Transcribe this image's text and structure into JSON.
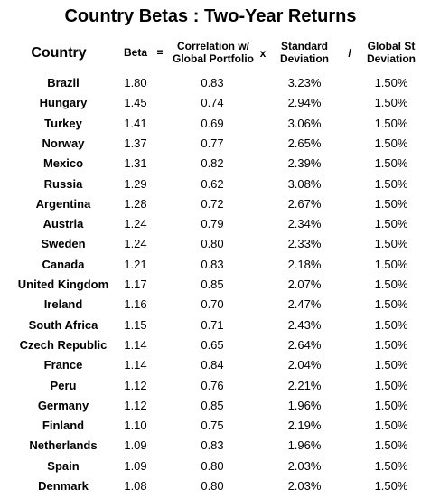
{
  "title": "Country Betas : Two-Year Returns",
  "headers": {
    "country": "Country",
    "beta": "Beta",
    "equals": "=",
    "correlation_line1": "Correlation w/",
    "correlation_line2": "Global Portfolio",
    "times": "x",
    "sd_line1": "Standard",
    "sd_line2": "Deviation",
    "divide": "/",
    "gsd_line1": "Global St",
    "gsd_line2": "Deviation"
  },
  "rows": [
    {
      "country": "Brazil",
      "beta": "1.80",
      "corr": "0.83",
      "sd": "3.23%",
      "gsd": "1.50%"
    },
    {
      "country": "Hungary",
      "beta": "1.45",
      "corr": "0.74",
      "sd": "2.94%",
      "gsd": "1.50%"
    },
    {
      "country": "Turkey",
      "beta": "1.41",
      "corr": "0.69",
      "sd": "3.06%",
      "gsd": "1.50%"
    },
    {
      "country": "Norway",
      "beta": "1.37",
      "corr": "0.77",
      "sd": "2.65%",
      "gsd": "1.50%"
    },
    {
      "country": "Mexico",
      "beta": "1.31",
      "corr": "0.82",
      "sd": "2.39%",
      "gsd": "1.50%"
    },
    {
      "country": "Russia",
      "beta": "1.29",
      "corr": "0.62",
      "sd": "3.08%",
      "gsd": "1.50%"
    },
    {
      "country": "Argentina",
      "beta": "1.28",
      "corr": "0.72",
      "sd": "2.67%",
      "gsd": "1.50%"
    },
    {
      "country": "Austria",
      "beta": "1.24",
      "corr": "0.79",
      "sd": "2.34%",
      "gsd": "1.50%"
    },
    {
      "country": "Sweden",
      "beta": "1.24",
      "corr": "0.80",
      "sd": "2.33%",
      "gsd": "1.50%"
    },
    {
      "country": "Canada",
      "beta": "1.21",
      "corr": "0.83",
      "sd": "2.18%",
      "gsd": "1.50%"
    },
    {
      "country": "United Kingdom",
      "beta": "1.17",
      "corr": "0.85",
      "sd": "2.07%",
      "gsd": "1.50%"
    },
    {
      "country": "Ireland",
      "beta": "1.16",
      "corr": "0.70",
      "sd": "2.47%",
      "gsd": "1.50%"
    },
    {
      "country": "South Africa",
      "beta": "1.15",
      "corr": "0.71",
      "sd": "2.43%",
      "gsd": "1.50%"
    },
    {
      "country": "Czech Republic",
      "beta": "1.14",
      "corr": "0.65",
      "sd": "2.64%",
      "gsd": "1.50%"
    },
    {
      "country": "France",
      "beta": "1.14",
      "corr": "0.84",
      "sd": "2.04%",
      "gsd": "1.50%"
    },
    {
      "country": "Peru",
      "beta": "1.12",
      "corr": "0.76",
      "sd": "2.21%",
      "gsd": "1.50%"
    },
    {
      "country": "Germany",
      "beta": "1.12",
      "corr": "0.85",
      "sd": "1.96%",
      "gsd": "1.50%"
    },
    {
      "country": "Finland",
      "beta": "1.10",
      "corr": "0.75",
      "sd": "2.19%",
      "gsd": "1.50%"
    },
    {
      "country": "Netherlands",
      "beta": "1.09",
      "corr": "0.83",
      "sd": "1.96%",
      "gsd": "1.50%"
    },
    {
      "country": "Spain",
      "beta": "1.09",
      "corr": "0.80",
      "sd": "2.03%",
      "gsd": "1.50%"
    },
    {
      "country": "Denmark",
      "beta": "1.08",
      "corr": "0.80",
      "sd": "2.03%",
      "gsd": "1.50%"
    }
  ]
}
